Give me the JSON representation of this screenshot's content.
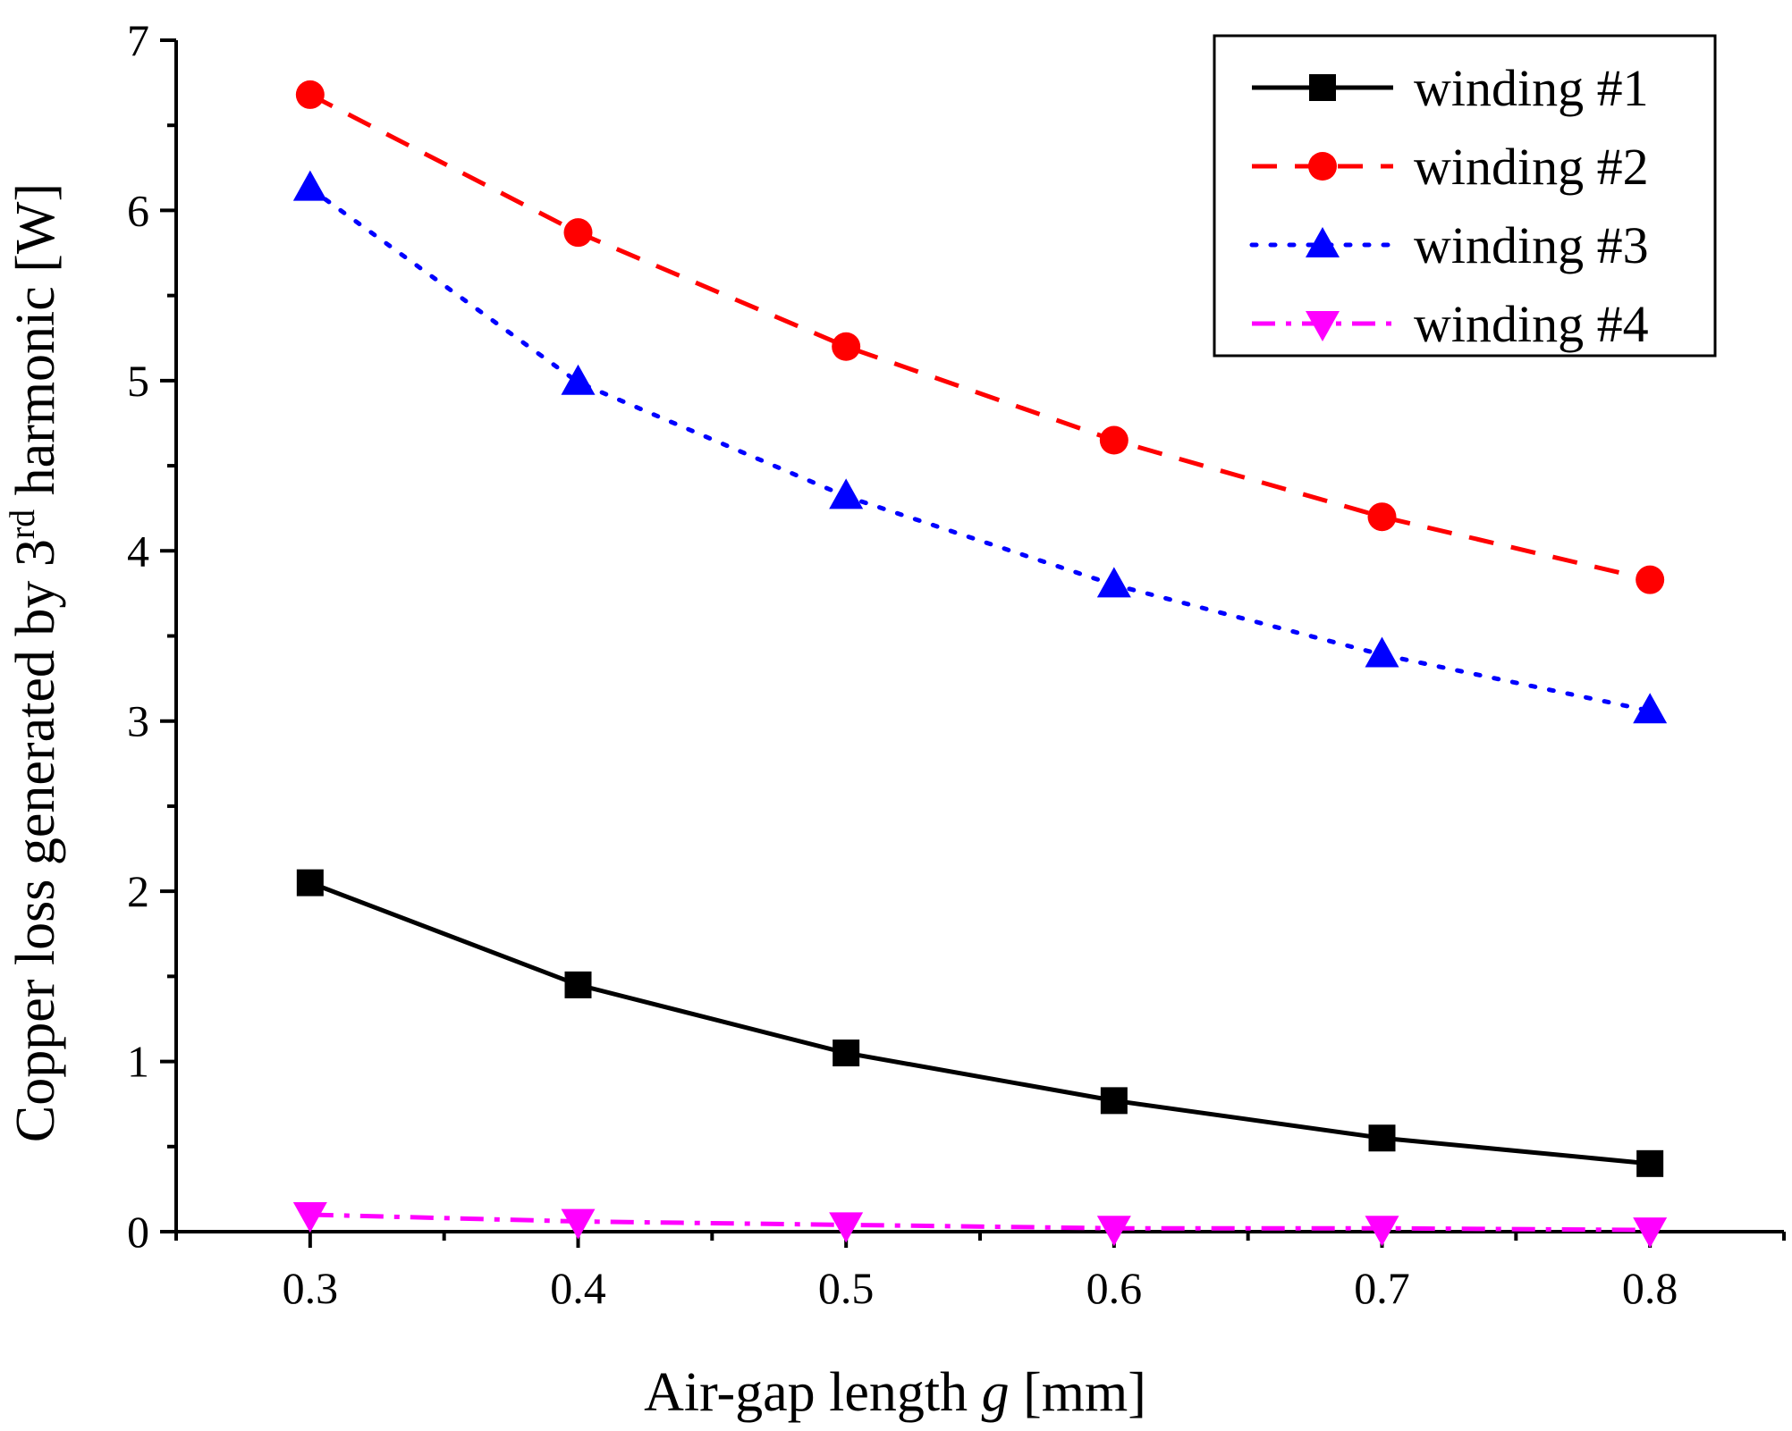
{
  "chart_data": {
    "type": "line",
    "title": "",
    "xlabel": {
      "prefix": "Air-gap length ",
      "var": "g",
      "suffix": " [mm]"
    },
    "ylabel": {
      "prefix": "Copper loss generated by 3",
      "sup": "rd",
      "suffix": " harmonic [W]"
    },
    "xlim": [
      0.25,
      0.85
    ],
    "ylim": [
      0,
      7
    ],
    "x": [
      0.3,
      0.4,
      0.5,
      0.6,
      0.7,
      0.8
    ],
    "x_ticks": [
      "0.3",
      "0.4",
      "0.5",
      "0.6",
      "0.7",
      "0.8"
    ],
    "y_ticks": [
      "0",
      "1",
      "2",
      "3",
      "4",
      "5",
      "6",
      "7"
    ],
    "legend_position": "top-right",
    "series": [
      {
        "name": "winding #1",
        "values": [
          2.05,
          1.45,
          1.05,
          0.77,
          0.55,
          0.4
        ],
        "color": "#000000",
        "marker": "square",
        "line": "solid"
      },
      {
        "name": "winding #2",
        "values": [
          6.68,
          5.87,
          5.2,
          4.65,
          4.2,
          3.83
        ],
        "color": "#ff0000",
        "marker": "circle",
        "line": "dashed"
      },
      {
        "name": "winding #3",
        "values": [
          6.13,
          4.99,
          4.32,
          3.8,
          3.39,
          3.06
        ],
        "color": "#0000ff",
        "marker": "triangle-up",
        "line": "dotted"
      },
      {
        "name": "winding #4",
        "values": [
          0.1,
          0.06,
          0.04,
          0.02,
          0.02,
          0.01
        ],
        "color": "#ff00ff",
        "marker": "triangle-down",
        "line": "dash-dot"
      }
    ]
  }
}
